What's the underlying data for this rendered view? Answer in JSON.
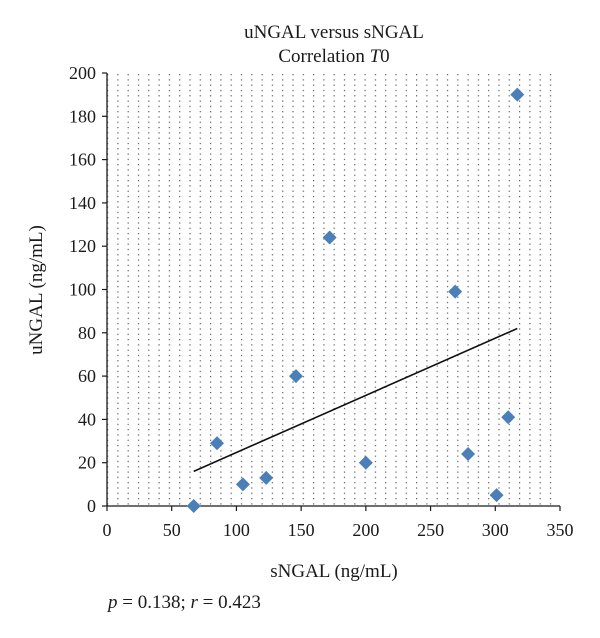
{
  "chart_data": {
    "type": "scatter",
    "title": "uNGAL versus sNGAL",
    "subtitle_prefix": "Correlation ",
    "subtitle_italic": "T",
    "subtitle_suffix": "0",
    "xlabel": "sNGAL (ng/mL)",
    "ylabel": "uNGAL (ng/mL)",
    "xlim": [
      0,
      350
    ],
    "ylim": [
      0,
      200
    ],
    "xticks": [
      0,
      50,
      100,
      150,
      200,
      250,
      300,
      350
    ],
    "yticks": [
      0,
      20,
      40,
      60,
      80,
      100,
      120,
      140,
      160,
      180,
      200
    ],
    "grid": "dotted",
    "marker": "diamond",
    "marker_color": "#4a7fb8",
    "points": [
      {
        "x": 67,
        "y": 0
      },
      {
        "x": 85,
        "y": 29
      },
      {
        "x": 105,
        "y": 10
      },
      {
        "x": 123,
        "y": 13
      },
      {
        "x": 146,
        "y": 60
      },
      {
        "x": 172,
        "y": 124
      },
      {
        "x": 200,
        "y": 20
      },
      {
        "x": 269,
        "y": 99
      },
      {
        "x": 279,
        "y": 24
      },
      {
        "x": 301,
        "y": 5
      },
      {
        "x": 310,
        "y": 41
      },
      {
        "x": 317,
        "y": 190
      }
    ],
    "trendline": {
      "x": [
        67,
        317
      ],
      "y": [
        16,
        82
      ]
    }
  },
  "stats": {
    "p_symbol": "p",
    "p_text": " = 0.138; ",
    "r_symbol": "r",
    "r_text": " = 0.423"
  }
}
